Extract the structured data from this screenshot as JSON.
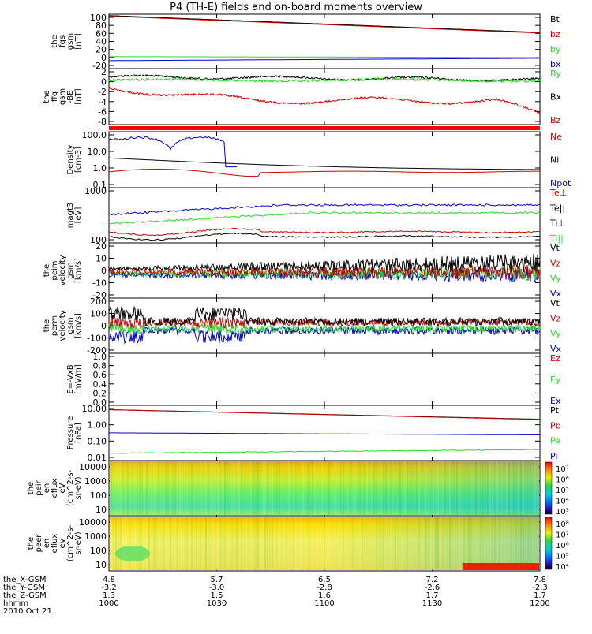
{
  "title": "P4 (TH-E) fields and on-board moments overview",
  "colors": {
    "black": "#000000",
    "red": "#cc0000",
    "green": "#22dd22",
    "blue": "#0000cc",
    "bright_red": "#ff0000"
  },
  "chart_data": [
    {
      "type": "line",
      "panel": "fgs",
      "ylabel": [
        "the",
        "fgs",
        "gsm",
        "[nT]"
      ],
      "yticks": [
        "100",
        "80",
        "60",
        "40",
        "20",
        "0",
        "-20"
      ],
      "ylim": [
        -20,
        100
      ],
      "legend": [
        {
          "label": "Bt",
          "color": "#000000"
        },
        {
          "label": "bz",
          "color": "#cc0000"
        },
        {
          "label": "by",
          "color": "#22dd22"
        },
        {
          "label": "bx",
          "color": "#0000cc"
        }
      ],
      "x": [
        1000,
        1200
      ],
      "series": [
        {
          "name": "Bt",
          "color": "#000000",
          "values": [
            104,
            62
          ]
        },
        {
          "name": "bz",
          "color": "#cc0000",
          "values": [
            103,
            61
          ]
        },
        {
          "name": "by",
          "color": "#22dd22",
          "values": [
            2,
            0
          ]
        },
        {
          "name": "bx",
          "color": "#0000cc",
          "values": [
            -8,
            -2
          ]
        }
      ]
    },
    {
      "type": "line",
      "panel": "ffg",
      "ylabel": [
        "the",
        "ffg",
        "gsm",
        "-BB",
        "[nT]"
      ],
      "yticks": [
        "2",
        "0",
        "-2",
        "-4",
        "-6",
        "-8"
      ],
      "ylim": [
        -9,
        2.5
      ],
      "legend": [
        {
          "label": "By",
          "color": "#22dd22"
        },
        {
          "label": "Bx",
          "color": "#000000"
        },
        {
          "label": "Bz",
          "color": "#cc0000"
        }
      ]
    },
    {
      "type": "line",
      "panel": "density",
      "ylabel": [
        "Density",
        "[cm-3]"
      ],
      "yticks": [
        "100.0",
        "10.0",
        "1.0",
        "0.1"
      ],
      "ylim": [
        0.1,
        200
      ],
      "legend": [
        {
          "label": "Ne",
          "color": "#cc0000"
        },
        {
          "label": "Ni",
          "color": "#000000"
        },
        {
          "label": "Npot",
          "color": "#0000cc"
        }
      ]
    },
    {
      "type": "line",
      "panel": "temperature",
      "ylabel": [
        "magt3",
        "[eV]"
      ],
      "yticks": [
        "1000",
        "100"
      ],
      "legend": [
        {
          "label": "Te⊥",
          "color": "#cc0000"
        },
        {
          "label": "Te||",
          "color": "#000000"
        },
        {
          "label": "Ti⊥",
          "color": "#000000"
        },
        {
          "label": "Ti||",
          "color": "#22dd22"
        }
      ]
    },
    {
      "type": "line",
      "panel": "peim",
      "ylabel": [
        "the",
        "peim",
        "velocity",
        "gsm",
        "[km/s]"
      ],
      "yticks": [
        "20",
        "10",
        "0",
        "-10",
        "-20"
      ],
      "ylim": [
        -20,
        20
      ],
      "legend": [
        {
          "label": "Vt",
          "color": "#000000"
        },
        {
          "label": "Vz",
          "color": "#cc0000"
        },
        {
          "label": "Vy",
          "color": "#22dd22"
        },
        {
          "label": "Vx",
          "color": "#0000cc"
        }
      ]
    },
    {
      "type": "line",
      "panel": "perm",
      "ylabel": [
        "the",
        "perm",
        "velocity",
        "gsm",
        "[km/s]"
      ],
      "yticks": [
        "200",
        "100",
        "0",
        "-100",
        "-200"
      ],
      "ylim": [
        -200,
        200
      ],
      "legend": [
        {
          "label": "Vt",
          "color": "#000000"
        },
        {
          "label": "Vz",
          "color": "#cc0000"
        },
        {
          "label": "Vy",
          "color": "#22dd22"
        },
        {
          "label": "Vx",
          "color": "#0000cc"
        }
      ]
    },
    {
      "type": "line",
      "panel": "efield",
      "ylabel": [
        "E=-VxB",
        "[mV/m]"
      ],
      "yticks": [
        "1.0",
        "0.8",
        "0.6",
        "0.4",
        "0.2",
        "0.0"
      ],
      "ylim": [
        0,
        1
      ],
      "legend": [
        {
          "label": "Ez",
          "color": "#cc0000"
        },
        {
          "label": "Ey",
          "color": "#22dd22"
        },
        {
          "label": "Ex",
          "color": "#0000cc"
        }
      ]
    },
    {
      "type": "line",
      "panel": "pressure",
      "ylabel": [
        "Pressure",
        "[nPa]"
      ],
      "yticks": [
        "10.00",
        "1.00",
        "0.10",
        "0.01"
      ],
      "ylim": [
        0.01,
        10
      ],
      "legend": [
        {
          "label": "Pt",
          "color": "#000000"
        },
        {
          "label": "Pb",
          "color": "#cc0000"
        },
        {
          "label": "Pe",
          "color": "#22dd22"
        },
        {
          "label": "Pi",
          "color": "#0000cc"
        }
      ],
      "series": [
        {
          "name": "Pt",
          "color": "#000000",
          "values": [
            8.5,
            2.2
          ]
        },
        {
          "name": "Pb",
          "color": "#cc0000",
          "values": [
            8.4,
            2.1
          ]
        },
        {
          "name": "Pe",
          "color": "#22dd22",
          "values": [
            0.018,
            0.03
          ]
        },
        {
          "name": "Pi",
          "color": "#0000cc",
          "values": [
            0.32,
            0.24
          ]
        }
      ]
    },
    {
      "type": "heatmap",
      "panel": "peir",
      "ylabel": [
        "the",
        "peir",
        "en",
        "eflux",
        "eV",
        "(cm^2-s-",
        "sr-eV)"
      ],
      "yticks": [
        "10000",
        "1000",
        "100",
        "10"
      ],
      "colorbar_ticks": [
        "10⁷",
        "10⁶",
        "10⁵",
        "10⁴",
        "10³"
      ]
    },
    {
      "type": "heatmap",
      "panel": "peer",
      "ylabel": [
        "the",
        "peer",
        "en",
        "eflux",
        "eV",
        "(cm^2-s-",
        "sr-eV)"
      ],
      "yticks": [
        "10000",
        "1000",
        "100",
        "10"
      ],
      "colorbar_ticks": [
        "10⁸",
        "10⁷",
        "10⁶",
        "10⁵",
        "10⁴"
      ]
    }
  ],
  "xaxis": {
    "labels": [
      "the_X-GSM",
      "the_Y-GSM",
      "the_Z-GSM",
      "hhmm",
      "2010 Oct 21"
    ],
    "ticks": [
      {
        "x": "4.8",
        "y": "-3.2",
        "z": "1.3",
        "hhmm": "1000"
      },
      {
        "x": "5.7",
        "y": "-3.0",
        "z": "1.5",
        "hhmm": "1030"
      },
      {
        "x": "6.5",
        "y": "-2.8",
        "z": "1.6",
        "hhmm": "1100"
      },
      {
        "x": "7.2",
        "y": "-2.6",
        "z": "1.7",
        "hhmm": "1130"
      },
      {
        "x": "7.8",
        "y": "-2.3",
        "z": "1.7",
        "hhmm": "1200"
      }
    ]
  }
}
